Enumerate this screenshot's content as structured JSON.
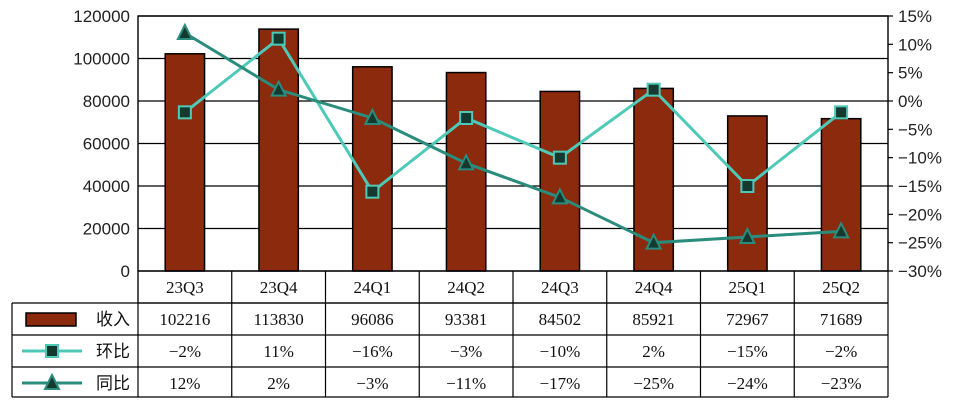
{
  "chart_data": {
    "type": "bar",
    "categories": [
      "23Q3",
      "23Q4",
      "24Q1",
      "24Q2",
      "24Q3",
      "24Q4",
      "25Q1",
      "25Q2"
    ],
    "left_axis": {
      "ylim": [
        0,
        120000
      ],
      "ticks": [
        0,
        20000,
        40000,
        60000,
        80000,
        100000,
        120000
      ]
    },
    "right_axis": {
      "ylim": [
        -30,
        15
      ],
      "ticks": [
        "15%",
        "10%",
        "5%",
        "0%",
        "−5%",
        "−10%",
        "−15%",
        "−20%",
        "−25%",
        "−30%"
      ]
    },
    "grid": true,
    "series": [
      {
        "name": "收入",
        "kind": "bar",
        "axis": "left",
        "color": "#8b2a0c",
        "values": [
          102216,
          113830,
          96086,
          93381,
          84502,
          85921,
          72967,
          71689
        ],
        "labels": [
          "102216",
          "113830",
          "96086",
          "93381",
          "84502",
          "85921",
          "72967",
          "71689"
        ]
      },
      {
        "name": "环比",
        "kind": "line",
        "axis": "right",
        "marker": "square",
        "color": "#4ec9b8",
        "values": [
          -2,
          11,
          -16,
          -3,
          -10,
          2,
          -15,
          -2
        ],
        "labels": [
          "−2%",
          "11%",
          "−16%",
          "−3%",
          "−10%",
          "2%",
          "−15%",
          "−2%"
        ]
      },
      {
        "name": "同比",
        "kind": "line",
        "axis": "right",
        "marker": "triangle",
        "color": "#2a8c7c",
        "values": [
          12,
          2,
          -3,
          -11,
          -17,
          -25,
          -24,
          -23
        ],
        "labels": [
          "12%",
          "2%",
          "−3%",
          "−11%",
          "−17%",
          "−25%",
          "−24%",
          "−23%"
        ]
      }
    ]
  }
}
